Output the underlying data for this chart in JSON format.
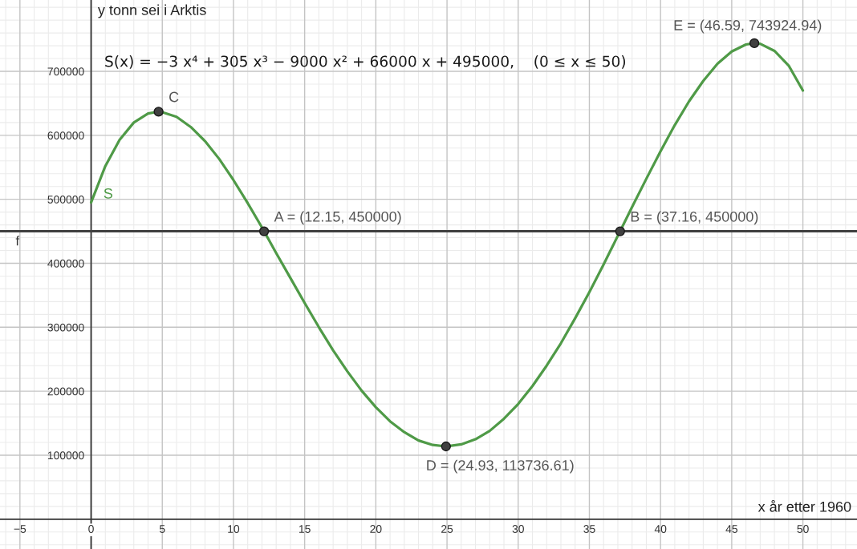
{
  "chart_data": {
    "type": "line",
    "xlabel": "x år etter 1960",
    "ylabel": "y tonn sei i Arktis",
    "annotations": [
      "S(x) = −3 x⁴ + 305 x³ − 9000 x² + 66000 x + 495000,    (0 ≤ x ≤ 50)",
      {
        "text": "C",
        "x": 4.74,
        "y": 637000
      },
      {
        "text": "A = (12.15, 450000)",
        "x": 12.15,
        "y": 450000
      },
      {
        "text": "D = (24.93, 113736.61)",
        "x": 24.93,
        "y": 113736.61
      },
      {
        "text": "B = (37.16, 450000)",
        "x": 37.16,
        "y": 450000
      },
      {
        "text": "E = (46.59, 743924.94)",
        "x": 46.59,
        "y": 743924.94
      }
    ],
    "series": [
      {
        "name": "S",
        "color": "#4f9a47",
        "marker": "none",
        "x": [
          0,
          1,
          2,
          3,
          4,
          4.74,
          5,
          6,
          7,
          8,
          9,
          10,
          11,
          12,
          12.15,
          13,
          14,
          15,
          16,
          17,
          18,
          19,
          20,
          21,
          22,
          23,
          24,
          24.93,
          25,
          26,
          27,
          28,
          29,
          30,
          31,
          32,
          33,
          34,
          35,
          36,
          37,
          37.16,
          38,
          39,
          40,
          41,
          42,
          43,
          44,
          45,
          46,
          46.59,
          47,
          48,
          49,
          50
        ],
        "values": [
          495000,
          552000,
          593000,
          620000,
          634000,
          637000,
          636000,
          629000,
          613000,
          591000,
          563000,
          530000,
          494000,
          456000,
          450000,
          416000,
          377000,
          338000,
          300000,
          264000,
          231000,
          201000,
          175000,
          153000,
          136000,
          123000,
          116000,
          113736.61,
          114000,
          117000,
          125000,
          138000,
          157000,
          180000,
          208000,
          240000,
          275000,
          314000,
          355000,
          398000,
          443000,
          450000,
          488000,
          532000,
          575000,
          616000,
          653000,
          685000,
          712000,
          731000,
          742000,
          743924.94,
          743000,
          732000,
          709000,
          670000
        ]
      },
      {
        "type": "scatter",
        "color": "#404040",
        "marker": "circle",
        "x": [
          4.74,
          12.15,
          24.93,
          37.16,
          46.59
        ],
        "values": [
          637000,
          450000,
          113736.61,
          450000,
          743924.94
        ]
      }
    ],
    "ref_lines": [
      {
        "axis": "y",
        "value": 450000,
        "label": "f",
        "color": "#404040"
      }
    ],
    "xlim": [
      -6.4,
      53.8
    ],
    "ylim": [
      -46600,
      811500
    ],
    "xticks": [
      {
        "value": -6,
        "label": null
      },
      {
        "value": -5,
        "label": "−5"
      },
      {
        "value": -4,
        "label": null
      },
      {
        "value": -3,
        "label": null
      },
      {
        "value": -2,
        "label": null
      },
      {
        "value": -1,
        "label": null
      },
      0,
      {
        "value": 1,
        "label": null
      },
      {
        "value": 2,
        "label": null
      },
      {
        "value": 3,
        "label": null
      },
      {
        "value": 4,
        "label": null
      },
      5,
      {
        "value": 6,
        "label": null
      },
      {
        "value": 7,
        "label": null
      },
      {
        "value": 8,
        "label": null
      },
      {
        "value": 9,
        "label": null
      },
      10,
      {
        "value": 11,
        "label": null
      },
      {
        "value": 12,
        "label": null
      },
      {
        "value": 13,
        "label": null
      },
      {
        "value": 14,
        "label": null
      },
      15,
      {
        "value": 16,
        "label": null
      },
      {
        "value": 17,
        "label": null
      },
      {
        "value": 18,
        "label": null
      },
      {
        "value": 19,
        "label": null
      },
      20,
      {
        "value": 21,
        "label": null
      },
      {
        "value": 22,
        "label": null
      },
      {
        "value": 23,
        "label": null
      },
      {
        "value": 24,
        "label": null
      },
      25,
      {
        "value": 26,
        "label": null
      },
      {
        "value": 27,
        "label": null
      },
      {
        "value": 28,
        "label": null
      },
      {
        "value": 29,
        "label": null
      },
      30,
      {
        "value": 31,
        "label": null
      },
      {
        "value": 32,
        "label": null
      },
      {
        "value": 33,
        "label": null
      },
      {
        "value": 34,
        "label": null
      },
      35,
      {
        "value": 36,
        "label": null
      },
      {
        "value": 37,
        "label": null
      },
      {
        "value": 38,
        "label": null
      },
      {
        "value": 39,
        "label": null
      },
      40,
      {
        "value": 41,
        "label": null
      },
      {
        "value": 42,
        "label": null
      },
      {
        "value": 43,
        "label": null
      },
      {
        "value": 44,
        "label": null
      },
      45,
      {
        "value": 46,
        "label": null
      },
      {
        "value": 47,
        "label": null
      },
      {
        "value": 48,
        "label": null
      },
      {
        "value": 49,
        "label": null
      },
      50,
      {
        "value": 51,
        "label": null
      },
      {
        "value": 52,
        "label": null
      },
      {
        "value": 53,
        "label": null
      }
    ],
    "yticks": [
      {
        "value": -40000,
        "label": null
      },
      {
        "value": -20000,
        "label": null
      },
      {
        "value": 0,
        "label": null
      },
      {
        "value": 20000,
        "label": null
      },
      {
        "value": 40000,
        "label": null
      },
      {
        "value": 60000,
        "label": null
      },
      {
        "value": 80000,
        "label": null
      },
      100000,
      {
        "value": 120000,
        "label": null
      },
      {
        "value": 140000,
        "label": null
      },
      {
        "value": 160000,
        "label": null
      },
      {
        "value": 180000,
        "label": null
      },
      200000,
      {
        "value": 220000,
        "label": null
      },
      {
        "value": 240000,
        "label": null
      },
      {
        "value": 260000,
        "label": null
      },
      {
        "value": 280000,
        "label": null
      },
      300000,
      {
        "value": 320000,
        "label": null
      },
      {
        "value": 340000,
        "label": null
      },
      {
        "value": 360000,
        "label": null
      },
      {
        "value": 380000,
        "label": null
      },
      400000,
      {
        "value": 420000,
        "label": null
      },
      {
        "value": 440000,
        "label": null
      },
      {
        "value": 460000,
        "label": null
      },
      {
        "value": 480000,
        "label": null
      },
      500000,
      {
        "value": 520000,
        "label": null
      },
      {
        "value": 540000,
        "label": null
      },
      {
        "value": 560000,
        "label": null
      },
      {
        "value": 580000,
        "label": null
      },
      600000,
      {
        "value": 620000,
        "label": null
      },
      {
        "value": 640000,
        "label": null
      },
      {
        "value": 660000,
        "label": null
      },
      {
        "value": 680000,
        "label": null
      },
      700000,
      {
        "value": 720000,
        "label": null
      },
      {
        "value": 740000,
        "label": null
      },
      {
        "value": 760000,
        "label": null
      },
      {
        "value": 780000,
        "label": null
      },
      {
        "value": 800000,
        "label": null
      }
    ],
    "grid": true
  }
}
